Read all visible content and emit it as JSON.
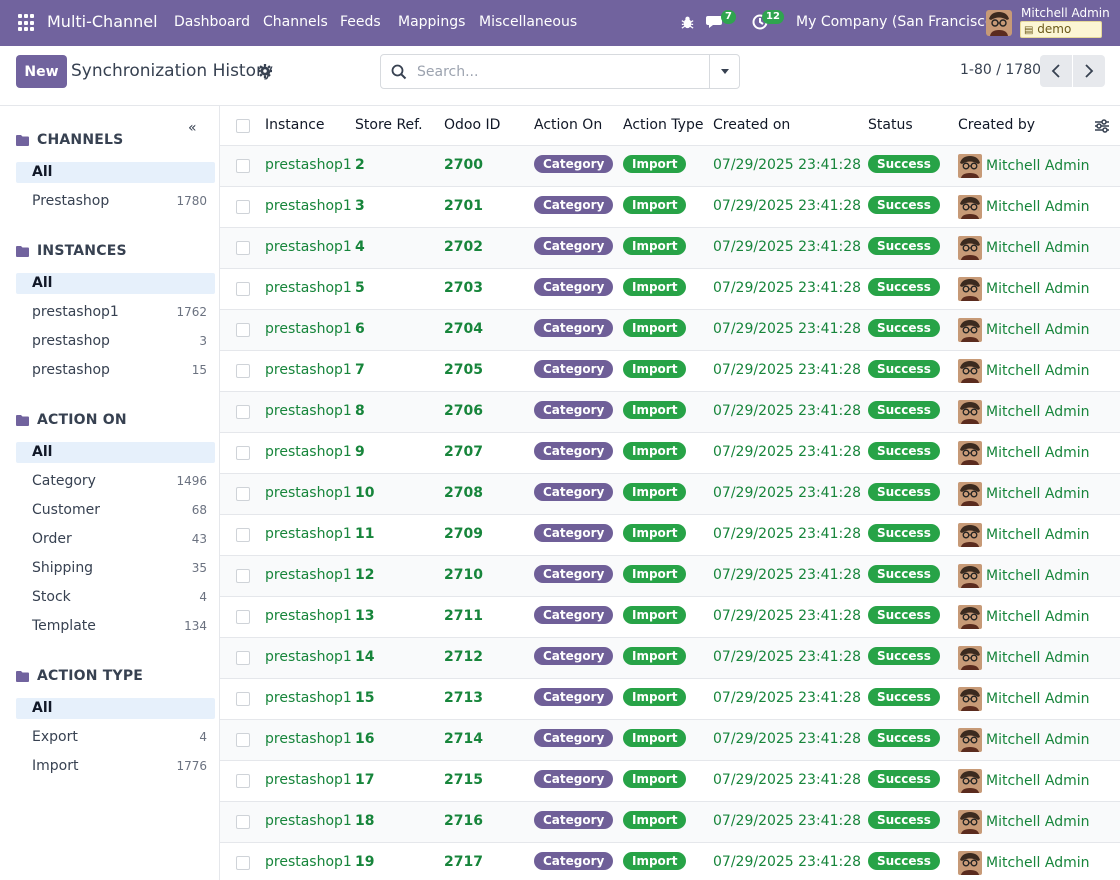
{
  "navbar": {
    "brand": "Multi-Channel",
    "menu": [
      "Dashboard",
      "Channels",
      "Feeds",
      "Mappings",
      "Miscellaneous"
    ],
    "messages_count": "7",
    "activity_count": "12",
    "company": "My Company (San Francisco)",
    "user": "Mitchell Admin",
    "database": "demo"
  },
  "control": {
    "new_label": "New",
    "title": "Synchronization History",
    "search_placeholder": "Search...",
    "pager": "1-80 / 1780"
  },
  "side": {
    "sections": [
      {
        "title": "CHANNELS",
        "items": [
          {
            "label": "All",
            "count": "",
            "active": true
          },
          {
            "label": "Prestashop",
            "count": "1780"
          }
        ]
      },
      {
        "title": "INSTANCES",
        "items": [
          {
            "label": "All",
            "count": "",
            "active": true
          },
          {
            "label": "prestashop1",
            "count": "1762"
          },
          {
            "label": "prestashop",
            "count": "3"
          },
          {
            "label": "prestashop",
            "count": "15"
          }
        ]
      },
      {
        "title": "ACTION ON",
        "items": [
          {
            "label": "All",
            "count": "",
            "active": true
          },
          {
            "label": "Category",
            "count": "1496"
          },
          {
            "label": "Customer",
            "count": "68"
          },
          {
            "label": "Order",
            "count": "43"
          },
          {
            "label": "Shipping",
            "count": "35"
          },
          {
            "label": "Stock",
            "count": "4"
          },
          {
            "label": "Template",
            "count": "134"
          }
        ]
      },
      {
        "title": "ACTION TYPE",
        "items": [
          {
            "label": "All",
            "count": "",
            "active": true
          },
          {
            "label": "Export",
            "count": "4"
          },
          {
            "label": "Import",
            "count": "1776"
          }
        ]
      }
    ]
  },
  "table": {
    "columns": [
      "Instance",
      "Store Ref.",
      "Odoo ID",
      "Action On",
      "Action Type",
      "Created on",
      "Status",
      "Created by"
    ],
    "rows": [
      [
        "prestashop1",
        "2",
        "2700",
        "Category",
        "Import",
        "07/29/2025 23:41:28",
        "Success",
        "Mitchell Admin"
      ],
      [
        "prestashop1",
        "3",
        "2701",
        "Category",
        "Import",
        "07/29/2025 23:41:28",
        "Success",
        "Mitchell Admin"
      ],
      [
        "prestashop1",
        "4",
        "2702",
        "Category",
        "Import",
        "07/29/2025 23:41:28",
        "Success",
        "Mitchell Admin"
      ],
      [
        "prestashop1",
        "5",
        "2703",
        "Category",
        "Import",
        "07/29/2025 23:41:28",
        "Success",
        "Mitchell Admin"
      ],
      [
        "prestashop1",
        "6",
        "2704",
        "Category",
        "Import",
        "07/29/2025 23:41:28",
        "Success",
        "Mitchell Admin"
      ],
      [
        "prestashop1",
        "7",
        "2705",
        "Category",
        "Import",
        "07/29/2025 23:41:28",
        "Success",
        "Mitchell Admin"
      ],
      [
        "prestashop1",
        "8",
        "2706",
        "Category",
        "Import",
        "07/29/2025 23:41:28",
        "Success",
        "Mitchell Admin"
      ],
      [
        "prestashop1",
        "9",
        "2707",
        "Category",
        "Import",
        "07/29/2025 23:41:28",
        "Success",
        "Mitchell Admin"
      ],
      [
        "prestashop1",
        "10",
        "2708",
        "Category",
        "Import",
        "07/29/2025 23:41:28",
        "Success",
        "Mitchell Admin"
      ],
      [
        "prestashop1",
        "11",
        "2709",
        "Category",
        "Import",
        "07/29/2025 23:41:28",
        "Success",
        "Mitchell Admin"
      ],
      [
        "prestashop1",
        "12",
        "2710",
        "Category",
        "Import",
        "07/29/2025 23:41:28",
        "Success",
        "Mitchell Admin"
      ],
      [
        "prestashop1",
        "13",
        "2711",
        "Category",
        "Import",
        "07/29/2025 23:41:28",
        "Success",
        "Mitchell Admin"
      ],
      [
        "prestashop1",
        "14",
        "2712",
        "Category",
        "Import",
        "07/29/2025 23:41:28",
        "Success",
        "Mitchell Admin"
      ],
      [
        "prestashop1",
        "15",
        "2713",
        "Category",
        "Import",
        "07/29/2025 23:41:28",
        "Success",
        "Mitchell Admin"
      ],
      [
        "prestashop1",
        "16",
        "2714",
        "Category",
        "Import",
        "07/29/2025 23:41:28",
        "Success",
        "Mitchell Admin"
      ],
      [
        "prestashop1",
        "17",
        "2715",
        "Category",
        "Import",
        "07/29/2025 23:41:28",
        "Success",
        "Mitchell Admin"
      ],
      [
        "prestashop1",
        "18",
        "2716",
        "Category",
        "Import",
        "07/29/2025 23:41:28",
        "Success",
        "Mitchell Admin"
      ],
      [
        "prestashop1",
        "19",
        "2717",
        "Category",
        "Import",
        "07/29/2025 23:41:28",
        "Success",
        "Mitchell Admin"
      ]
    ]
  },
  "colors": {
    "navbar": "#71639e",
    "category_pill": "#6f5f98",
    "success_green": "#27a347",
    "link_green": "#17853b",
    "active_filter": "#e6f0fb"
  },
  "icons": [
    "apps-grid-icon",
    "bug-icon",
    "chat-icon",
    "clock-icon",
    "gear-icon",
    "search-icon",
    "caret-down-icon",
    "chevron-left-icon",
    "chevron-right-icon",
    "folder-icon",
    "collapse-icon",
    "optional-columns-icon",
    "avatar"
  ]
}
